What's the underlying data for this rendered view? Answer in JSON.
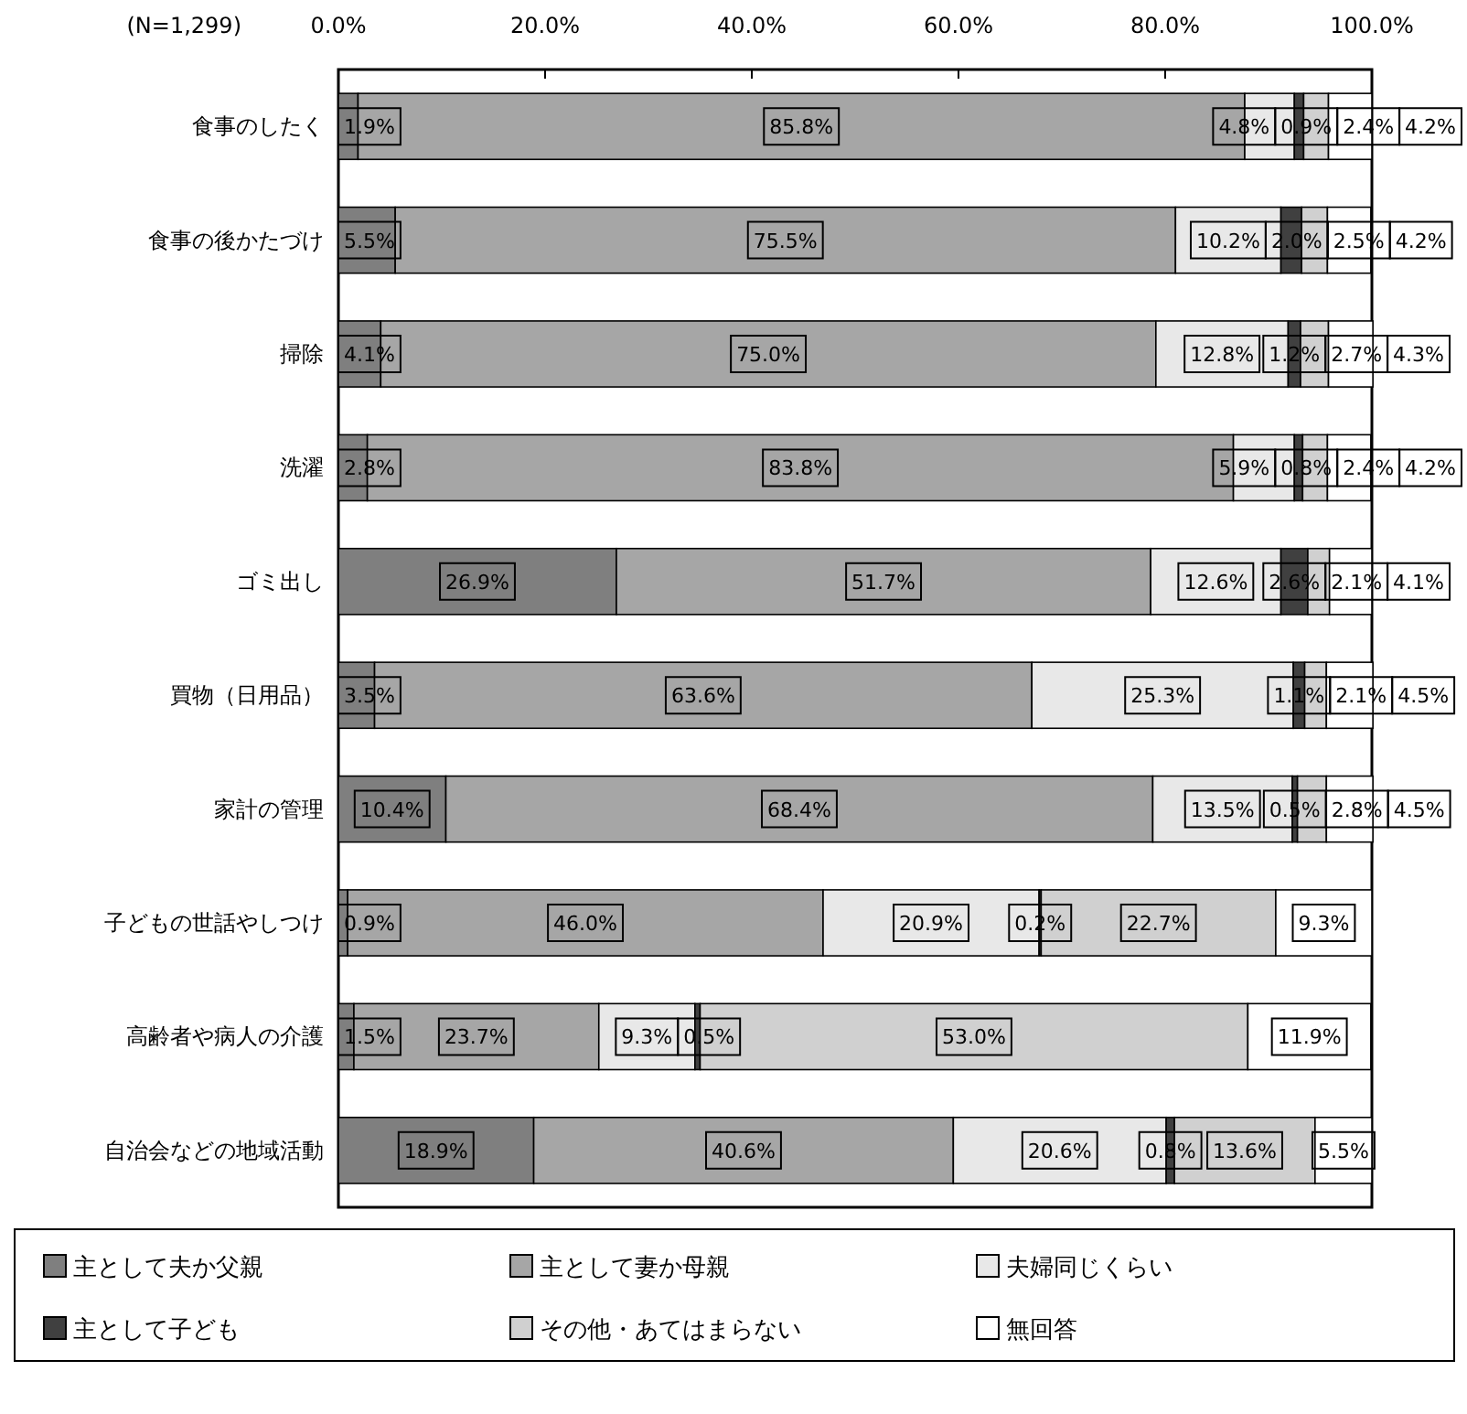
{
  "chart_data": {
    "type": "bar",
    "orientation": "horizontal",
    "stacked": true,
    "legend": "bottom",
    "grid": false,
    "annotations": [
      "(N=1,299)"
    ],
    "categories": [
      "食事のしたく",
      "食事の後かたづけ",
      "掃除",
      "洗濯",
      "ゴミ出し",
      "買物（日用品）",
      "家計の管理",
      "子どもの世話やしつけ",
      "高齢者や病人の介護",
      "自治会などの地域活動"
    ],
    "xlim": [
      0,
      100
    ],
    "xticks": [
      {
        "value": 0,
        "label": "0.0%"
      },
      {
        "value": 20,
        "label": "20.0%"
      },
      {
        "value": 40,
        "label": "40.0%"
      },
      {
        "value": 60,
        "label": "60.0%"
      },
      {
        "value": 80,
        "label": "80.0%"
      },
      {
        "value": 100,
        "label": "100.0%"
      }
    ],
    "series": [
      {
        "name": "主として夫か父親",
        "color": "#7f7f7f",
        "values": [
          1.9,
          5.5,
          4.1,
          2.8,
          26.9,
          3.5,
          10.4,
          0.9,
          1.5,
          18.9
        ],
        "value_labels": [
          "1.9%",
          "5.5%",
          "4.1%",
          "2.8%",
          "26.9%",
          "3.5%",
          "10.4%",
          "0.9%",
          "1.5%",
          "18.9%"
        ]
      },
      {
        "name": "主として妻か母親",
        "color": "#a6a6a6",
        "values": [
          85.8,
          75.5,
          75.0,
          83.8,
          51.7,
          63.6,
          68.4,
          46.0,
          23.7,
          40.6
        ],
        "value_labels": [
          "85.8%",
          "75.5%",
          "75.0%",
          "83.8%",
          "51.7%",
          "63.6%",
          "68.4%",
          "46.0%",
          "23.7%",
          "40.6%"
        ]
      },
      {
        "name": "夫婦同じくらい",
        "color": "#e8e8e8",
        "values": [
          4.8,
          10.2,
          12.8,
          5.9,
          12.6,
          25.3,
          13.5,
          20.9,
          9.3,
          20.6
        ],
        "value_labels": [
          "4.8%",
          "10.2%",
          "12.8%",
          "5.9%",
          "12.6%",
          "25.3%",
          "13.5%",
          "20.9%",
          "9.3%",
          "20.6%"
        ]
      },
      {
        "name": "主として子ども",
        "color": "#404040",
        "values": [
          0.9,
          2.0,
          1.2,
          0.8,
          2.6,
          1.1,
          0.5,
          0.2,
          0.5,
          0.8
        ],
        "value_labels": [
          "0.9%",
          "2.0%",
          "1.2%",
          "0.8%",
          "2.6%",
          "1.1%",
          "0.5%",
          "0.2%",
          "0.5%",
          "0.8%"
        ]
      },
      {
        "name": "その他・あてはまらない",
        "color": "#d0d0d0",
        "values": [
          2.4,
          2.5,
          2.7,
          2.4,
          2.1,
          2.1,
          2.8,
          22.7,
          53.0,
          13.6
        ],
        "value_labels": [
          "2.4%",
          "2.5%",
          "2.7%",
          "2.4%",
          "2.1%",
          "2.1%",
          "2.8%",
          "22.7%",
          "53.0%",
          "13.6%"
        ]
      },
      {
        "name": "無回答",
        "color": "#ffffff",
        "values": [
          4.2,
          4.2,
          4.3,
          4.2,
          4.1,
          4.5,
          4.5,
          9.3,
          11.9,
          5.5
        ],
        "value_labels": [
          "4.2%",
          "4.2%",
          "4.3%",
          "4.2%",
          "4.1%",
          "4.5%",
          "4.5%",
          "9.3%",
          "11.9%",
          "5.5%"
        ]
      }
    ]
  }
}
